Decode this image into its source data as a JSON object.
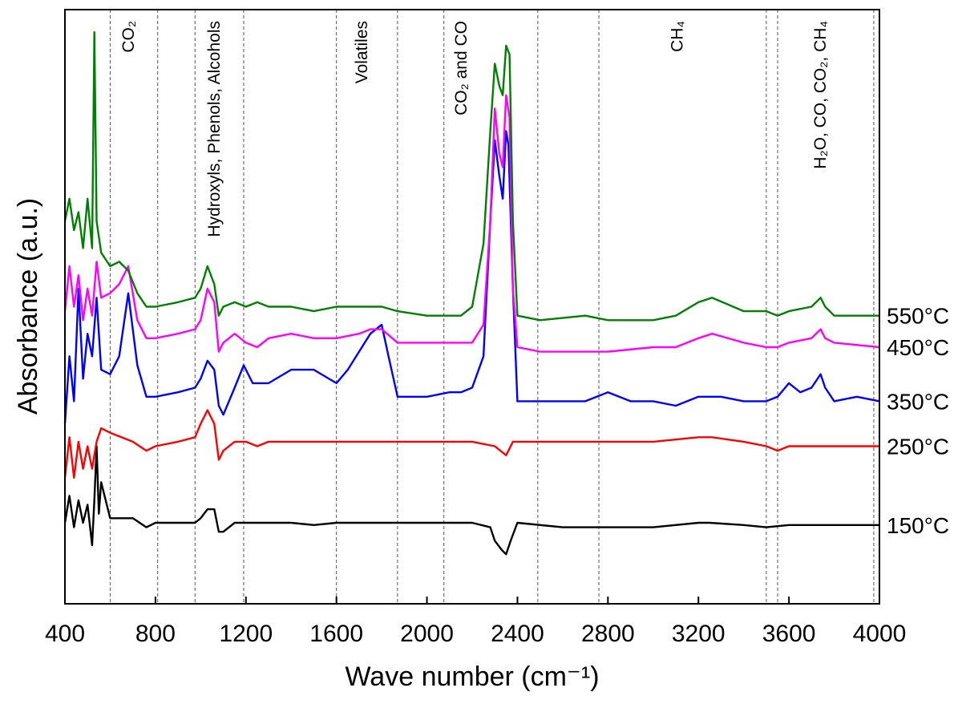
{
  "chart_data": {
    "type": "line",
    "title": "",
    "xlabel": "Wave number (cm⁻¹)",
    "ylabel": "Absorbance (a.u.)",
    "xlim": [
      400,
      4000
    ],
    "ylim": [
      -1,
      12.2
    ],
    "x_ticks": [
      400,
      800,
      1200,
      1600,
      2000,
      2400,
      2800,
      3200,
      3600,
      4000
    ],
    "x_tick_labels": [
      "400",
      "800",
      "1200",
      "1600",
      "2000",
      "2400",
      "2800",
      "3200",
      "3600",
      "4000"
    ],
    "y_ticks_shown": false,
    "grid": false,
    "vertical_reference_lines": [
      600,
      810,
      975,
      1190,
      1600,
      1870,
      2075,
      2490,
      2760,
      3500,
      3550,
      3975
    ],
    "region_labels": [
      {
        "id": "co2",
        "x": 705,
        "text": "CO₂"
      },
      {
        "id": "hydroxyls",
        "x": 1083,
        "text": "Hydroxyls, Phenols, Alcohols"
      },
      {
        "id": "volatiles",
        "x": 1735,
        "text": "Volatiles"
      },
      {
        "id": "co2-co",
        "x": 2175,
        "text": "CO₂ and CO"
      },
      {
        "id": "ch4",
        "x": 3130,
        "text": "CH₄"
      },
      {
        "id": "h2o-co-co2-ch4",
        "x": 3762,
        "text": "H₂O, CO, CO₂, CH₄"
      }
    ],
    "series": [
      {
        "name": "150°C",
        "color": "#000000",
        "x": [
          400,
          420,
          440,
          460,
          480,
          500,
          520,
          530,
          540,
          550,
          560,
          600,
          700,
          760,
          800,
          900,
          975,
          1000,
          1030,
          1060,
          1080,
          1100,
          1150,
          1200,
          1300,
          1400,
          1500,
          1600,
          1800,
          2000,
          2200,
          2280,
          2300,
          2330,
          2350,
          2370,
          2400,
          2600,
          2800,
          3000,
          3200,
          3250,
          3400,
          3500,
          3600,
          3800,
          4000
        ],
        "y": [
          0.8,
          1.4,
          0.7,
          1.3,
          0.8,
          1.2,
          0.3,
          1.3,
          2.5,
          1.0,
          1.7,
          0.9,
          0.9,
          0.7,
          0.8,
          0.8,
          0.8,
          0.9,
          1.1,
          1.1,
          0.6,
          0.6,
          0.8,
          0.8,
          0.8,
          0.8,
          0.75,
          0.8,
          0.8,
          0.8,
          0.8,
          0.7,
          0.4,
          0.2,
          0.1,
          0.4,
          0.8,
          0.7,
          0.7,
          0.7,
          0.8,
          0.8,
          0.75,
          0.7,
          0.75,
          0.75,
          0.75
        ]
      },
      {
        "name": "250°C",
        "color": "#ff0000",
        "x": [
          400,
          420,
          440,
          460,
          480,
          500,
          520,
          540,
          560,
          600,
          700,
          760,
          800,
          900,
          975,
          1000,
          1030,
          1060,
          1080,
          1100,
          1150,
          1200,
          1250,
          1300,
          1500,
          1700,
          2000,
          2200,
          2300,
          2350,
          2360,
          2380,
          2400,
          2600,
          2800,
          3000,
          3200,
          3260,
          3400,
          3500,
          3550,
          3600,
          3800,
          4000
        ],
        "y": [
          1.8,
          2.7,
          1.8,
          2.6,
          2.0,
          2.5,
          2.0,
          2.6,
          2.9,
          2.8,
          2.6,
          2.4,
          2.5,
          2.6,
          2.7,
          3.0,
          3.3,
          3.0,
          2.2,
          2.4,
          2.6,
          2.6,
          2.5,
          2.6,
          2.6,
          2.6,
          2.6,
          2.6,
          2.5,
          2.3,
          2.4,
          2.6,
          2.6,
          2.6,
          2.6,
          2.6,
          2.7,
          2.7,
          2.6,
          2.5,
          2.4,
          2.5,
          2.5,
          2.5
        ]
      },
      {
        "name": "350°C",
        "color": "#0000ff",
        "x": [
          400,
          420,
          440,
          460,
          480,
          500,
          520,
          540,
          560,
          600,
          640,
          680,
          720,
          760,
          800,
          900,
          975,
          1000,
          1030,
          1060,
          1080,
          1100,
          1150,
          1190,
          1230,
          1300,
          1400,
          1500,
          1600,
          1650,
          1700,
          1750,
          1800,
          1830,
          1870,
          2000,
          2100,
          2150,
          2200,
          2250,
          2280,
          2300,
          2320,
          2335,
          2350,
          2360,
          2380,
          2400,
          2500,
          2700,
          2800,
          2900,
          3000,
          3100,
          3200,
          3300,
          3400,
          3500,
          3550,
          3600,
          3650,
          3700,
          3740,
          3760,
          3800,
          3900,
          4000
        ],
        "y": [
          3.0,
          4.5,
          3.5,
          6.0,
          4.0,
          5.0,
          4.5,
          5.8,
          4.2,
          4.1,
          4.5,
          5.9,
          4.3,
          3.6,
          3.6,
          3.7,
          3.8,
          4.0,
          4.4,
          4.2,
          3.4,
          3.2,
          3.8,
          4.3,
          3.9,
          3.9,
          4.2,
          4.2,
          3.9,
          4.2,
          4.6,
          5.0,
          5.2,
          4.5,
          3.6,
          3.6,
          3.7,
          3.7,
          3.8,
          4.5,
          7.5,
          9.3,
          8.5,
          8.0,
          9.5,
          9.2,
          6.0,
          3.5,
          3.5,
          3.5,
          3.7,
          3.5,
          3.5,
          3.4,
          3.6,
          3.6,
          3.5,
          3.5,
          3.6,
          3.9,
          3.7,
          3.8,
          4.1,
          3.8,
          3.5,
          3.6,
          3.5
        ]
      },
      {
        "name": "450°C",
        "color": "#ff00ff",
        "x": [
          400,
          420,
          440,
          460,
          480,
          500,
          520,
          540,
          560,
          600,
          640,
          680,
          720,
          760,
          800,
          900,
          975,
          1000,
          1030,
          1060,
          1080,
          1100,
          1150,
          1200,
          1250,
          1300,
          1400,
          1500,
          1600,
          1700,
          1750,
          1800,
          1870,
          2000,
          2200,
          2250,
          2280,
          2300,
          2320,
          2335,
          2350,
          2365,
          2380,
          2400,
          2500,
          2700,
          2800,
          3000,
          3100,
          3200,
          3260,
          3400,
          3500,
          3550,
          3600,
          3700,
          3740,
          3760,
          3800,
          4000
        ],
        "y": [
          5.5,
          6.5,
          5.6,
          6.3,
          5.3,
          6.0,
          5.4,
          6.6,
          5.8,
          5.9,
          6.1,
          6.5,
          5.3,
          4.9,
          4.9,
          5.0,
          5.1,
          5.3,
          6.0,
          5.7,
          4.6,
          4.8,
          5.0,
          4.8,
          4.7,
          4.9,
          5.0,
          4.9,
          4.9,
          5.0,
          5.1,
          5.1,
          4.8,
          4.8,
          4.8,
          5.2,
          7.5,
          10.0,
          9.0,
          8.7,
          10.3,
          9.8,
          6.0,
          4.7,
          4.6,
          4.6,
          4.6,
          4.7,
          4.7,
          4.9,
          5.0,
          4.8,
          4.7,
          4.7,
          4.8,
          4.9,
          5.1,
          4.9,
          4.8,
          4.7
        ]
      },
      {
        "name": "550°C",
        "color": "#008000",
        "x": [
          400,
          420,
          440,
          460,
          480,
          500,
          520,
          530,
          540,
          560,
          600,
          640,
          680,
          720,
          760,
          800,
          900,
          975,
          1000,
          1030,
          1060,
          1080,
          1100,
          1150,
          1200,
          1250,
          1300,
          1400,
          1500,
          1600,
          1700,
          1800,
          1870,
          2000,
          2150,
          2200,
          2250,
          2280,
          2300,
          2320,
          2335,
          2350,
          2365,
          2380,
          2400,
          2500,
          2700,
          2800,
          3000,
          3100,
          3200,
          3260,
          3400,
          3500,
          3550,
          3600,
          3700,
          3740,
          3760,
          3800,
          4000
        ],
        "y": [
          7.5,
          8.0,
          7.3,
          7.7,
          6.9,
          8.0,
          6.9,
          11.7,
          7.5,
          6.8,
          6.5,
          6.6,
          6.4,
          5.9,
          5.6,
          5.6,
          5.7,
          5.8,
          6.0,
          6.5,
          6.1,
          5.4,
          5.6,
          5.7,
          5.6,
          5.7,
          5.6,
          5.6,
          5.5,
          5.6,
          5.6,
          5.6,
          5.5,
          5.4,
          5.4,
          5.6,
          7.0,
          9.5,
          11.0,
          10.5,
          10.3,
          11.4,
          11.2,
          7.5,
          5.4,
          5.3,
          5.4,
          5.3,
          5.3,
          5.4,
          5.7,
          5.8,
          5.5,
          5.5,
          5.4,
          5.5,
          5.6,
          5.8,
          5.6,
          5.4,
          5.4
        ]
      }
    ]
  }
}
